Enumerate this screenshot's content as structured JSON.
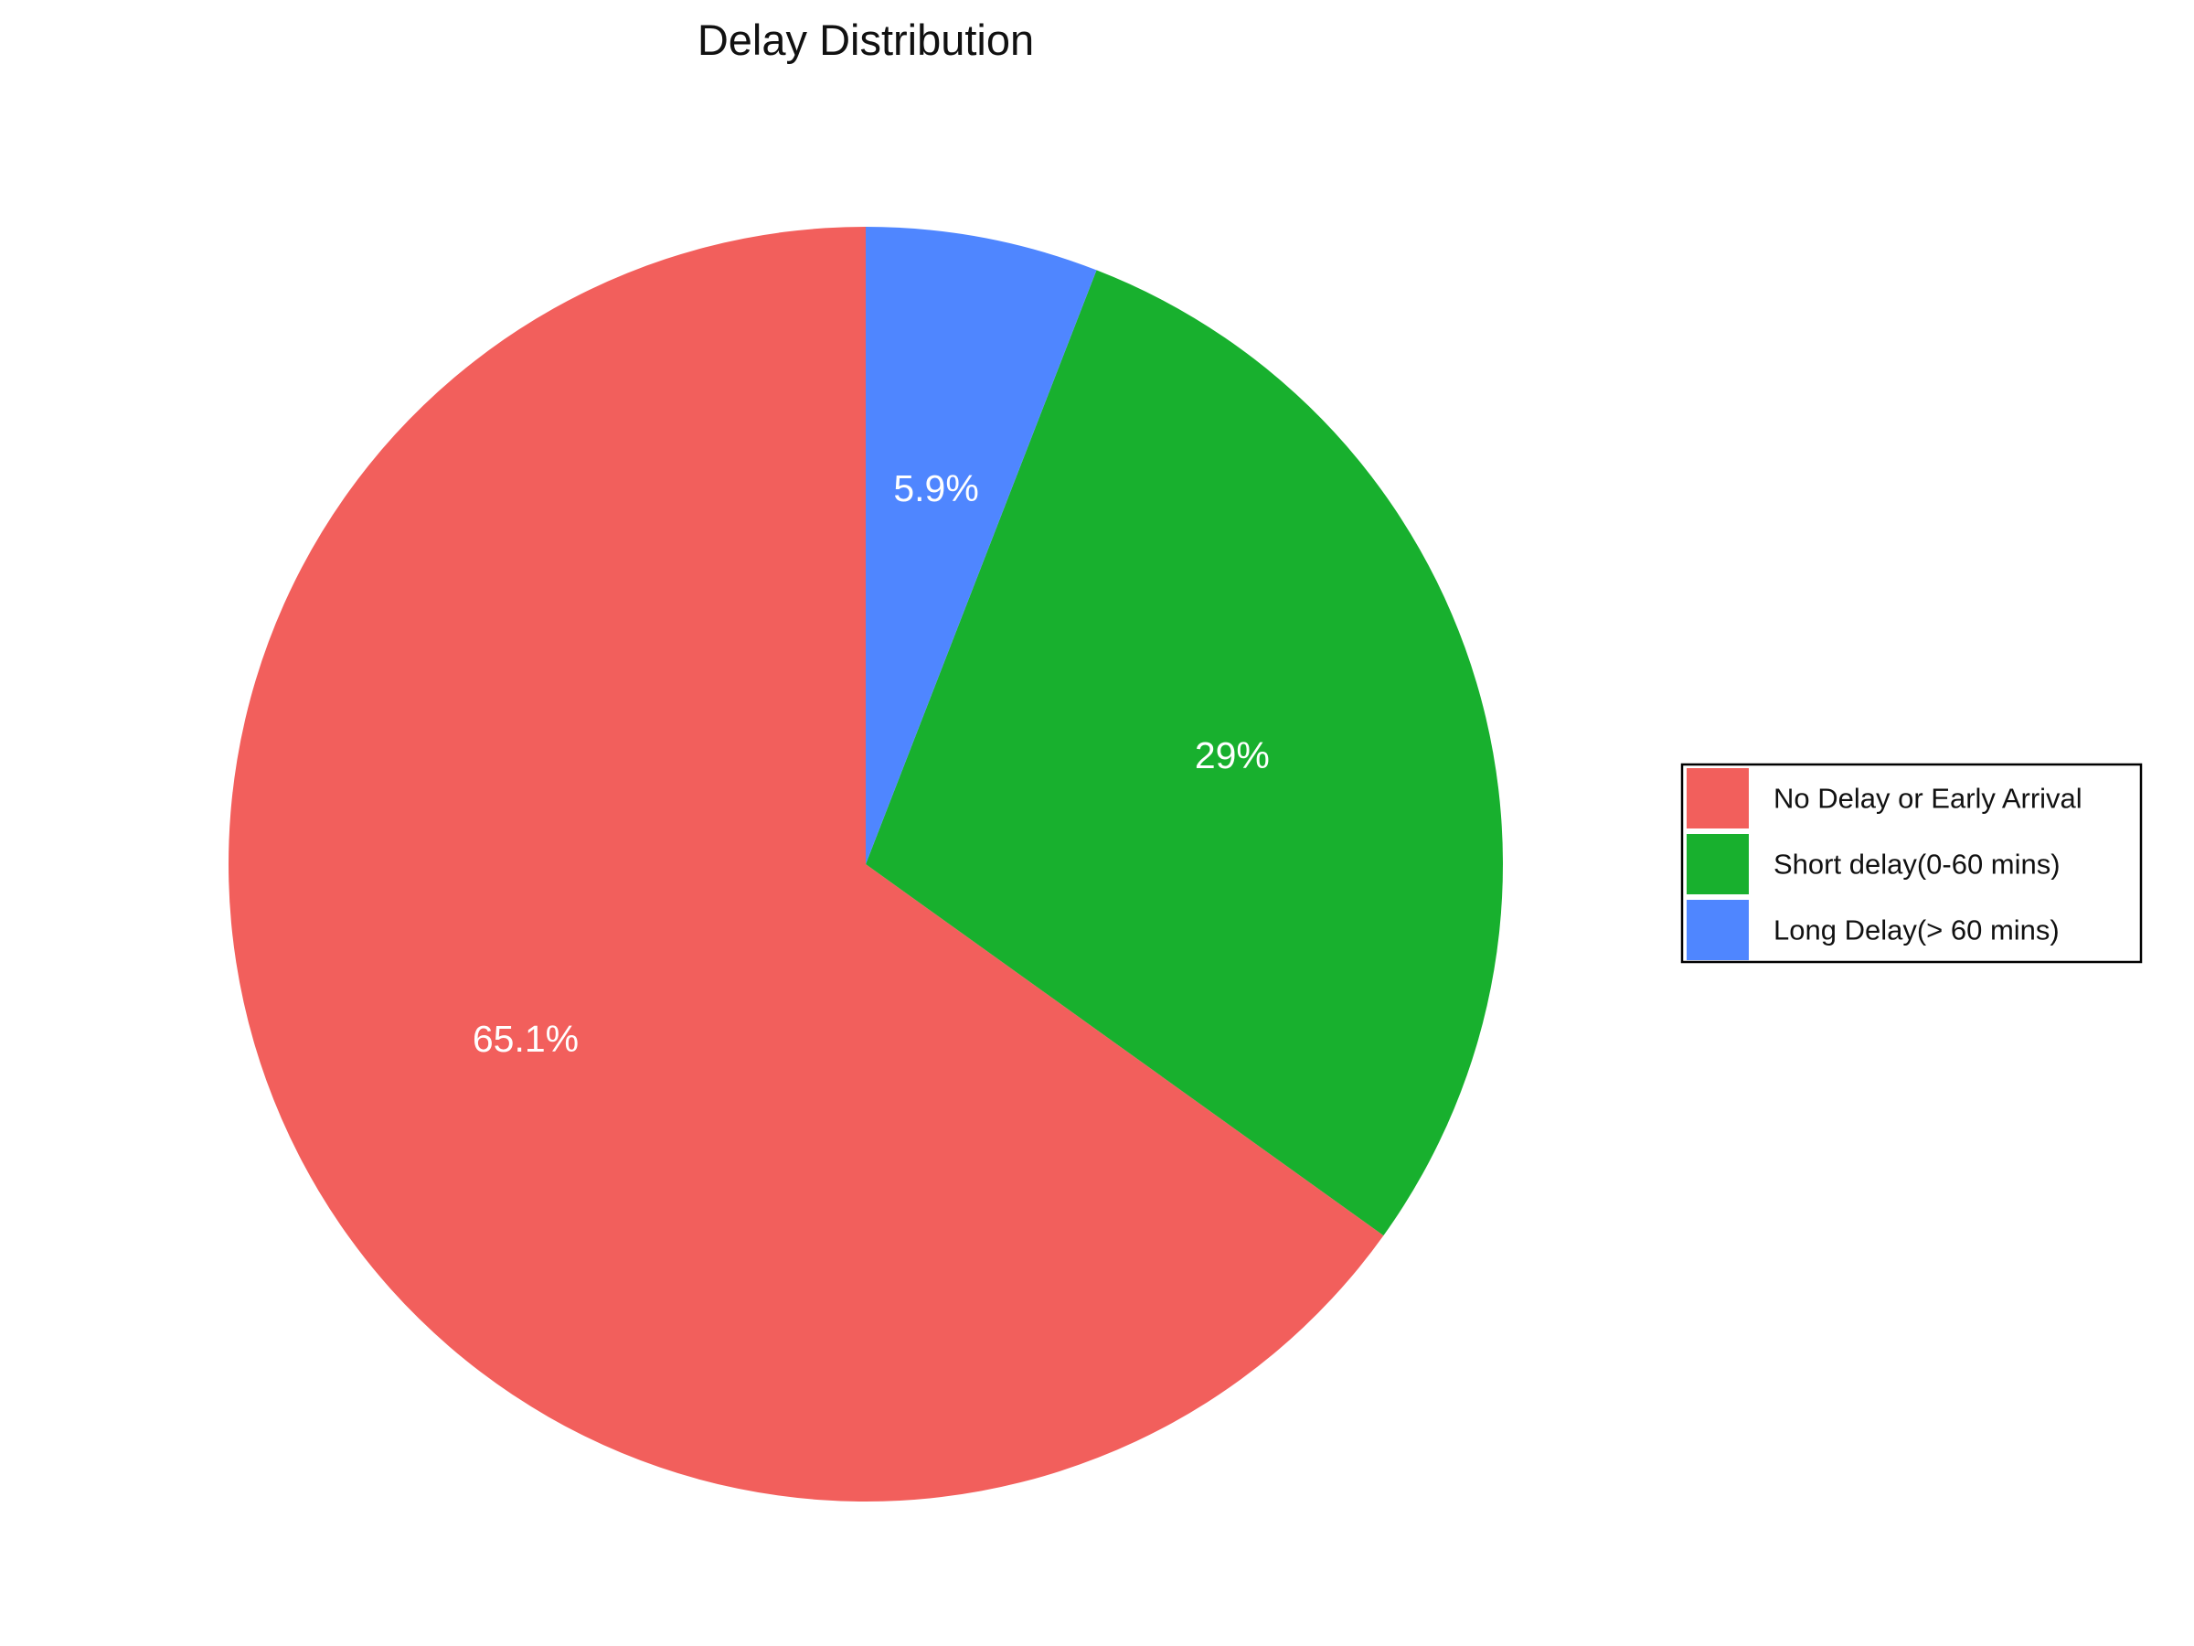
{
  "chart_data": {
    "type": "pie",
    "title": "Delay Distribution",
    "categories": [
      "No Delay or Early Arrival",
      "Short delay(0-60 mins)",
      "Long Delay(> 60 mins)"
    ],
    "values": [
      65.1,
      29.0,
      5.9
    ],
    "labels": [
      "65.1%",
      "29%",
      "5.9%"
    ],
    "colors": [
      "#F25F5C",
      "#18B02E",
      "#4F86FF"
    ],
    "start_angle_deg": 90,
    "direction": "clockwise",
    "legend": {
      "position": "right",
      "entries": [
        "No Delay or Early Arrival",
        "Short delay(0-60 mins)",
        "Long Delay(> 60 mins)"
      ]
    }
  }
}
